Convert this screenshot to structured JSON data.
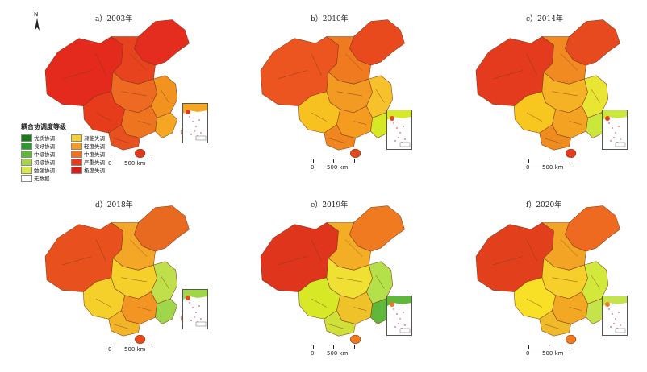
{
  "panels": [
    {
      "title": "a）2003年",
      "colors": {
        "nw": "#e42a1c",
        "ne": "#e52d1f",
        "n": "#e8431f",
        "c": "#ee6a22",
        "e": "#f2921f",
        "sw": "#e73c1c",
        "s": "#ef7420",
        "sc": "#e8501f",
        "sea": "#f5a623",
        "hainan": "#e03a1e",
        "taiwan": "#ffffff"
      }
    },
    {
      "title": "b）2010年",
      "colors": {
        "nw": "#ec551f",
        "ne": "#e84a1e",
        "n": "#f07a20",
        "c": "#f29a22",
        "e": "#f6c12a",
        "sw": "#f7c21f",
        "s": "#f59b20",
        "sc": "#ef8620",
        "sea": "#d7e826",
        "hainan": "#e04a1e",
        "taiwan": "#ffffff"
      }
    },
    {
      "title": "c）2014年",
      "colors": {
        "nw": "#e43a1d",
        "ne": "#e74a1e",
        "n": "#f08a21",
        "c": "#f5b224",
        "e": "#e8e633",
        "sw": "#f7c71f",
        "s": "#f4a222",
        "sc": "#ef8c20",
        "sea": "#c9e83b",
        "hainan": "#e43a1d",
        "taiwan": "#ffffff"
      }
    },
    {
      "title": "d）2018年",
      "colors": {
        "nw": "#e8511e",
        "ne": "#e86a20",
        "n": "#f4a726",
        "c": "#f5cf2a",
        "e": "#bfe04a",
        "sw": "#f5cf2a",
        "s": "#f29522",
        "sc": "#f1b52a",
        "sea": "#9fd64a",
        "hainan": "#e84a1e",
        "taiwan": "#ffffff"
      }
    },
    {
      "title": "e）2019年",
      "colors": {
        "nw": "#e0351d",
        "ne": "#ef7a20",
        "n": "#f4ae26",
        "c": "#efe033",
        "e": "#b4e04a",
        "sw": "#d7e826",
        "s": "#efc22a",
        "sc": "#cfe03a",
        "sea": "#5fb83a",
        "hainan": "#ef7a20",
        "taiwan": "#ffffff"
      }
    },
    {
      "title": "f）2020年",
      "colors": {
        "nw": "#e2401d",
        "ne": "#ee6a20",
        "n": "#f4a424",
        "c": "#f6cf2b",
        "e": "#d2e83a",
        "sw": "#f7e026",
        "s": "#f2a822",
        "sc": "#efbb2a",
        "sea": "#c5e34a",
        "hainan": "#ef7a20",
        "taiwan": "#ffffff"
      }
    }
  ],
  "legend": {
    "title": "耦合协调度等级",
    "items": [
      {
        "label": "优质协调",
        "color": "#1a7a1a"
      },
      {
        "label": "濒临失调",
        "color": "#f5d132"
      },
      {
        "label": "良好协调",
        "color": "#2f9b2f"
      },
      {
        "label": "轻度失调",
        "color": "#f59b25"
      },
      {
        "label": "中级协调",
        "color": "#62b73a"
      },
      {
        "label": "中度失调",
        "color": "#ef7321"
      },
      {
        "label": "初级协调",
        "color": "#a8d44a"
      },
      {
        "label": "严重失调",
        "color": "#e8391e"
      },
      {
        "label": "勉强协调",
        "color": "#d9e84a"
      },
      {
        "label": "极度失调",
        "color": "#d11f18"
      },
      {
        "label": "无数据",
        "color": "#ffffff"
      }
    ]
  },
  "north_arrow": {
    "label": "N"
  },
  "scale": {
    "zero": "0",
    "value": "500 km"
  }
}
